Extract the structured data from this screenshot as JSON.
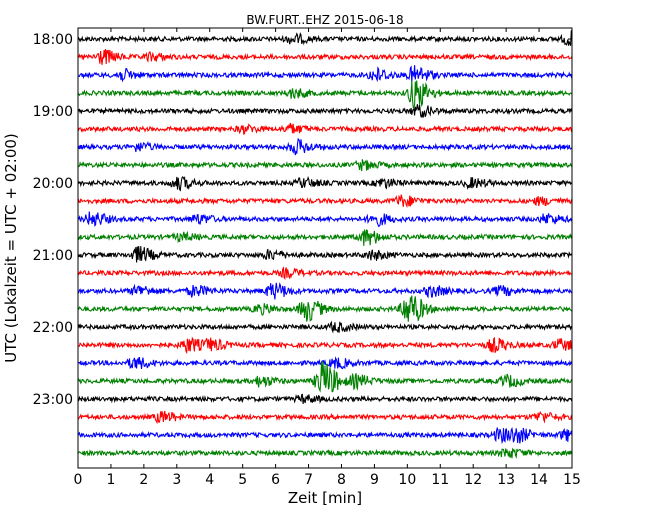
{
  "chart_data": {
    "type": "line",
    "title": "BW.FURT..EHZ 2015-06-18",
    "xlabel": "Zeit  [min]",
    "ylabel": "UTC (Lokalzeit = UTC + 02:00)",
    "xlim": [
      0,
      15
    ],
    "x_ticks": [
      "0",
      "1",
      "2",
      "3",
      "4",
      "5",
      "6",
      "7",
      "8",
      "9",
      "10",
      "11",
      "12",
      "13",
      "14",
      "15"
    ],
    "y_tick_labels": [
      "18:00",
      "19:00",
      "20:00",
      "21:00",
      "22:00",
      "23:00"
    ],
    "trace_interval_min": 15,
    "colors": [
      "#000000",
      "#ff0000",
      "#0000ff",
      "#008000"
    ],
    "series": [
      {
        "start": "18:00",
        "amplitude": 1.0,
        "events": [
          {
            "x": 6.5,
            "amp": 1.0
          },
          {
            "x": 14.9,
            "amp": 1.6
          }
        ]
      },
      {
        "start": "18:15",
        "amplitude": 1.0,
        "events": [
          {
            "x": 0.7,
            "amp": 1.7
          },
          {
            "x": 2.2,
            "amp": 0.8
          }
        ]
      },
      {
        "start": "18:30",
        "amplitude": 1.0,
        "events": [
          {
            "x": 1.3,
            "amp": 1.2
          },
          {
            "x": 9.0,
            "amp": 1.5
          },
          {
            "x": 10.2,
            "amp": 2.0
          }
        ]
      },
      {
        "start": "18:45",
        "amplitude": 1.0,
        "events": [
          {
            "x": 10.2,
            "amp": 3.5
          },
          {
            "x": 6.5,
            "amp": 1.0
          }
        ]
      },
      {
        "start": "19:00",
        "amplitude": 1.0,
        "events": [
          {
            "x": 10.3,
            "amp": 1.3
          }
        ]
      },
      {
        "start": "19:15",
        "amplitude": 1.0,
        "events": [
          {
            "x": 6.4,
            "amp": 1.0
          },
          {
            "x": 5.0,
            "amp": 0.8
          }
        ]
      },
      {
        "start": "19:30",
        "amplitude": 1.0,
        "events": [
          {
            "x": 6.6,
            "amp": 1.6
          },
          {
            "x": 1.8,
            "amp": 0.9
          }
        ]
      },
      {
        "start": "19:45",
        "amplitude": 1.0,
        "events": [
          {
            "x": 8.6,
            "amp": 1.0
          }
        ]
      },
      {
        "start": "20:00",
        "amplitude": 1.0,
        "events": [
          {
            "x": 3.0,
            "amp": 1.4
          },
          {
            "x": 6.8,
            "amp": 1.0
          },
          {
            "x": 9.2,
            "amp": 1.0
          },
          {
            "x": 11.9,
            "amp": 1.0
          }
        ]
      },
      {
        "start": "20:15",
        "amplitude": 1.0,
        "events": [
          {
            "x": 9.8,
            "amp": 1.2
          },
          {
            "x": 14.0,
            "amp": 0.8
          }
        ]
      },
      {
        "start": "20:30",
        "amplitude": 1.0,
        "events": [
          {
            "x": 0.4,
            "amp": 1.6
          },
          {
            "x": 3.6,
            "amp": 1.0
          },
          {
            "x": 9.0,
            "amp": 1.4
          },
          {
            "x": 14.2,
            "amp": 1.1
          }
        ]
      },
      {
        "start": "20:45",
        "amplitude": 1.0,
        "events": [
          {
            "x": 8.7,
            "amp": 1.8
          },
          {
            "x": 3.1,
            "amp": 0.8
          }
        ]
      },
      {
        "start": "21:00",
        "amplitude": 1.0,
        "events": [
          {
            "x": 1.8,
            "amp": 1.8
          },
          {
            "x": 5.8,
            "amp": 1.0
          },
          {
            "x": 8.9,
            "amp": 1.0
          }
        ]
      },
      {
        "start": "21:15",
        "amplitude": 1.0,
        "events": [
          {
            "x": 6.3,
            "amp": 0.9
          }
        ]
      },
      {
        "start": "21:30",
        "amplitude": 1.0,
        "events": [
          {
            "x": 1.8,
            "amp": 1.2
          },
          {
            "x": 3.5,
            "amp": 1.2
          },
          {
            "x": 5.9,
            "amp": 1.8
          },
          {
            "x": 10.7,
            "amp": 1.2
          },
          {
            "x": 12.8,
            "amp": 1.0
          }
        ]
      },
      {
        "start": "21:45",
        "amplitude": 1.0,
        "events": [
          {
            "x": 6.9,
            "amp": 2.8
          },
          {
            "x": 10.0,
            "amp": 4.0
          },
          {
            "x": 5.5,
            "amp": 1.0
          }
        ]
      },
      {
        "start": "22:00",
        "amplitude": 1.0,
        "events": [
          {
            "x": 7.8,
            "amp": 1.0
          }
        ]
      },
      {
        "start": "22:15",
        "amplitude": 1.0,
        "events": [
          {
            "x": 3.3,
            "amp": 1.6
          },
          {
            "x": 4.0,
            "amp": 1.2
          },
          {
            "x": 12.6,
            "amp": 1.5
          },
          {
            "x": 14.6,
            "amp": 1.2
          }
        ]
      },
      {
        "start": "22:30",
        "amplitude": 1.0,
        "events": [
          {
            "x": 1.7,
            "amp": 1.3
          },
          {
            "x": 7.8,
            "amp": 1.1
          }
        ]
      },
      {
        "start": "22:45",
        "amplitude": 1.0,
        "events": [
          {
            "x": 7.4,
            "amp": 4.5
          },
          {
            "x": 8.4,
            "amp": 1.4
          },
          {
            "x": 13.0,
            "amp": 1.3
          },
          {
            "x": 5.5,
            "amp": 1.1
          }
        ]
      },
      {
        "start": "23:00",
        "amplitude": 1.0,
        "events": [
          {
            "x": 6.8,
            "amp": 0.8
          }
        ]
      },
      {
        "start": "23:15",
        "amplitude": 1.0,
        "events": [
          {
            "x": 2.5,
            "amp": 1.2
          },
          {
            "x": 14.0,
            "amp": 1.0
          }
        ]
      },
      {
        "start": "23:30",
        "amplitude": 1.0,
        "events": [
          {
            "x": 12.8,
            "amp": 1.5
          },
          {
            "x": 13.3,
            "amp": 1.4
          },
          {
            "x": 14.8,
            "amp": 1.2
          }
        ]
      },
      {
        "start": "23:45",
        "amplitude": 1.0,
        "events": [
          {
            "x": 13.0,
            "amp": 1.0
          }
        ]
      }
    ]
  }
}
